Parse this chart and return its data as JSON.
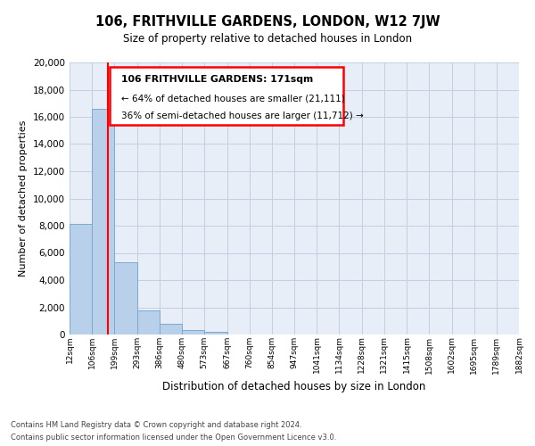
{
  "title": "106, FRITHVILLE GARDENS, LONDON, W12 7JW",
  "subtitle": "Size of property relative to detached houses in London",
  "xlabel": "Distribution of detached houses by size in London",
  "ylabel": "Number of detached properties",
  "bar_color": "#b8d0ea",
  "bar_edgecolor": "#7aaad0",
  "redline_x": 171,
  "bin_edges": [
    12,
    106,
    199,
    293,
    386,
    480,
    573,
    667,
    760,
    854,
    947,
    1041,
    1134,
    1228,
    1321,
    1415,
    1508,
    1602,
    1695,
    1789,
    1882
  ],
  "bar_heights": [
    8100,
    16600,
    5300,
    1750,
    800,
    300,
    200,
    0,
    0,
    0,
    0,
    0,
    0,
    0,
    0,
    0,
    0,
    0,
    0,
    0
  ],
  "tick_labels": [
    "12sqm",
    "106sqm",
    "199sqm",
    "293sqm",
    "386sqm",
    "480sqm",
    "573sqm",
    "667sqm",
    "760sqm",
    "854sqm",
    "947sqm",
    "1041sqm",
    "1134sqm",
    "1228sqm",
    "1321sqm",
    "1415sqm",
    "1508sqm",
    "1602sqm",
    "1695sqm",
    "1789sqm",
    "1882sqm"
  ],
  "annotation_title": "106 FRITHVILLE GARDENS: 171sqm",
  "annotation_line1": "← 64% of detached houses are smaller (21,111)",
  "annotation_line2": "36% of semi-detached houses are larger (11,712) →",
  "footer_line1": "Contains HM Land Registry data © Crown copyright and database right 2024.",
  "footer_line2": "Contains public sector information licensed under the Open Government Licence v3.0.",
  "ylim": [
    0,
    20000
  ],
  "yticks": [
    0,
    2000,
    4000,
    6000,
    8000,
    10000,
    12000,
    14000,
    16000,
    18000,
    20000
  ],
  "bg_color": "#e8eef8",
  "grid_color": "#c5cfe0"
}
